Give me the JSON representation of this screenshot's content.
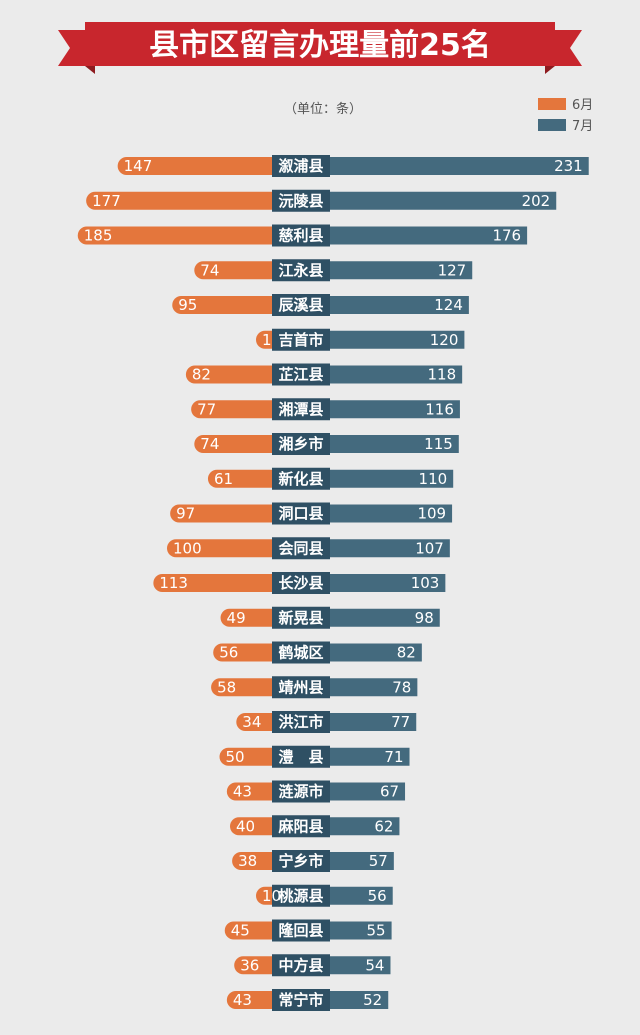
{
  "title": "县市区留言办理量前25名",
  "unit_label": "（单位：条）",
  "colors": {
    "june": "#e4763c",
    "july": "#446a7e",
    "label_bg": "#2f5064",
    "banner": "#c8262d",
    "banner_dark": "#8e1b1f"
  },
  "chart_data": {
    "type": "bar",
    "orientation": "horizontal-diverging",
    "title": "县市区留言办理量前25名",
    "unit": "条",
    "categories": [
      "溆浦县",
      "沅陵县",
      "慈利县",
      "江永县",
      "辰溪县",
      "吉首市",
      "芷江县",
      "湘潭县",
      "湘乡市",
      "新化县",
      "洞口县",
      "会同县",
      "长沙县",
      "新晃县",
      "鹤城区",
      "靖州县",
      "洪江市",
      "澧　县",
      "涟源市",
      "麻阳县",
      "宁乡市",
      "桃源县",
      "隆回县",
      "中方县",
      "常宁市"
    ],
    "series": [
      {
        "name": "6月",
        "values": [
          147,
          177,
          185,
          74,
          95,
          1,
          82,
          77,
          74,
          61,
          97,
          100,
          113,
          49,
          56,
          58,
          34,
          50,
          43,
          40,
          38,
          10,
          45,
          36,
          43
        ]
      },
      {
        "name": "7月",
        "values": [
          231,
          202,
          176,
          127,
          124,
          120,
          118,
          116,
          115,
          110,
          109,
          107,
          103,
          98,
          82,
          78,
          77,
          71,
          67,
          62,
          57,
          56,
          55,
          54,
          52
        ]
      }
    ],
    "legend": [
      "6月",
      "7月"
    ],
    "legend_position": "top-right"
  }
}
